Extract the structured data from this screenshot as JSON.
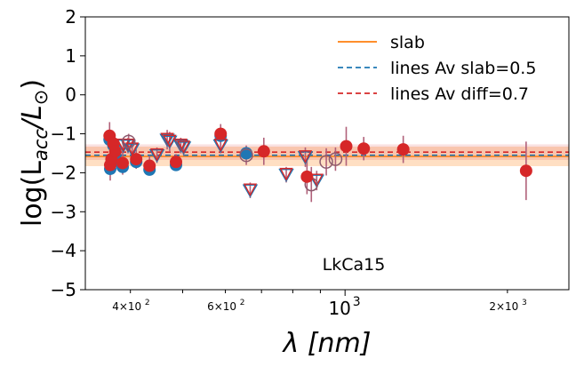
{
  "chart_data": {
    "type": "scatter",
    "title": "",
    "xlabel": "λ [nm]",
    "ylabel_prefix": "log(L",
    "ylabel_sub": "acc",
    "ylabel_mid": "/L",
    "ylabel_sub2": "⊙",
    "ylabel_suffix": ")",
    "x_scale": "log",
    "xlim": [
      330,
      2600
    ],
    "ylim": [
      -5,
      2
    ],
    "y_ticks": [
      {
        "v": 2,
        "label": "2"
      },
      {
        "v": 1,
        "label": "1"
      },
      {
        "v": 0,
        "label": "0"
      },
      {
        "v": -1,
        "label": "−1"
      },
      {
        "v": -2,
        "label": "−2"
      },
      {
        "v": -3,
        "label": "−3"
      },
      {
        "v": -4,
        "label": "−4"
      },
      {
        "v": -5,
        "label": "−5"
      }
    ],
    "x_major_ticks": [
      {
        "v": 1000,
        "base": "10",
        "exp": "3"
      }
    ],
    "x_minor_ticks": [
      {
        "v": 400,
        "mant": "4",
        "base": "10",
        "exp": "2"
      },
      {
        "v": 600,
        "mant": "6",
        "base": "10",
        "exp": "2"
      },
      {
        "v": 2000,
        "mant": "2",
        "base": "10",
        "exp": "3"
      }
    ],
    "x_minor_unlabeled": [
      500,
      700,
      800,
      900
    ],
    "annotation": "LkCa15",
    "legend_position": "top-right",
    "legend": [
      {
        "label": "slab",
        "color": "#ff7f0e",
        "style": "solid"
      },
      {
        "label": "lines Av slab=0.5",
        "color": "#1f77b4",
        "style": "dashed"
      },
      {
        "label": "lines Av diff=0.7",
        "color": "#d62728",
        "style": "dashed"
      }
    ],
    "lines": {
      "slab": {
        "y": -1.58,
        "band": [
          -1.83,
          -1.33
        ],
        "color": "#ff7f0e"
      },
      "av_slab": {
        "y": -1.55,
        "color": "#1f77b4"
      },
      "av_diff": {
        "y": -1.47,
        "band": [
          -1.67,
          -1.27
        ],
        "color": "#d62728"
      }
    },
    "colors": {
      "blue": "#1f77b4",
      "red": "#d62728",
      "err": "#b0617a",
      "open_circle": "#8c5a6e"
    },
    "blue_filled": [
      {
        "x": 366,
        "y": -1.15
      },
      {
        "x": 367,
        "y": -1.9
      },
      {
        "x": 369,
        "y": -1.75
      },
      {
        "x": 372,
        "y": -1.3
      },
      {
        "x": 375,
        "y": -1.55
      },
      {
        "x": 387,
        "y": -1.85
      },
      {
        "x": 410,
        "y": -1.72
      },
      {
        "x": 434,
        "y": -1.92
      },
      {
        "x": 486,
        "y": -1.8
      },
      {
        "x": 588,
        "y": -1.05
      },
      {
        "x": 656,
        "y": -1.5
      }
    ],
    "red_filled": [
      {
        "x": 366,
        "y": -1.05,
        "err": 0.35
      },
      {
        "x": 367,
        "y": -1.8,
        "err": 0.4
      },
      {
        "x": 369,
        "y": -1.65,
        "err": 0.3
      },
      {
        "x": 372,
        "y": -1.25,
        "err": 0.3
      },
      {
        "x": 375,
        "y": -1.45,
        "err": 0.35
      },
      {
        "x": 387,
        "y": -1.75,
        "err": 0.3
      },
      {
        "x": 410,
        "y": -1.65,
        "err": 0.25
      },
      {
        "x": 434,
        "y": -1.82,
        "err": 0.25
      },
      {
        "x": 486,
        "y": -1.72,
        "err": 0.2
      },
      {
        "x": 588,
        "y": -1.0,
        "err": 0.25
      },
      {
        "x": 707,
        "y": -1.45,
        "err": 0.35
      },
      {
        "x": 850,
        "y": -2.1,
        "err": 0.45
      },
      {
        "x": 1005,
        "y": -1.32,
        "err": 0.5
      },
      {
        "x": 1083,
        "y": -1.38,
        "err": 0.3
      },
      {
        "x": 1282,
        "y": -1.4,
        "err": 0.35
      },
      {
        "x": 2166,
        "y": -1.95,
        "err": 0.75
      }
    ],
    "open_circles": [
      {
        "x": 397,
        "y": -1.2,
        "err": 0.2
      },
      {
        "x": 656,
        "y": -1.55,
        "err": 0.25
      },
      {
        "x": 866,
        "y": -2.3,
        "err": 0.45
      },
      {
        "x": 923,
        "y": -1.72,
        "err": 0.35
      },
      {
        "x": 960,
        "y": -1.65,
        "err": 0.3
      }
    ],
    "triangles": [
      {
        "x": 388,
        "y": -1.3,
        "err": 0.2
      },
      {
        "x": 396,
        "y": -1.3,
        "err": 0.2
      },
      {
        "x": 403,
        "y": -1.4,
        "err": 0.2
      },
      {
        "x": 448,
        "y": -1.55,
        "err": 0.2
      },
      {
        "x": 468,
        "y": -1.15,
        "err": 0.25
      },
      {
        "x": 473,
        "y": -1.2,
        "err": 0.25
      },
      {
        "x": 496,
        "y": -1.3,
        "err": 0.2
      },
      {
        "x": 502,
        "y": -1.35,
        "err": 0.2
      },
      {
        "x": 588,
        "y": -1.3,
        "err": 0.2
      },
      {
        "x": 667,
        "y": -2.45,
        "err": 0.2
      },
      {
        "x": 778,
        "y": -2.05,
        "err": 0.2
      },
      {
        "x": 844,
        "y": -1.6,
        "err": 0.25
      },
      {
        "x": 886,
        "y": -2.2,
        "err": 0.25
      }
    ]
  }
}
